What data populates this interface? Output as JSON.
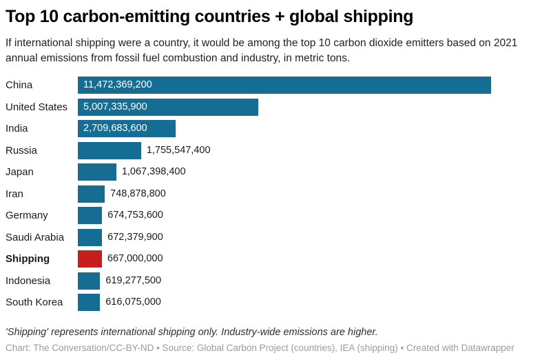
{
  "header": {
    "title": "Top 10 carbon-emitting countries + global shipping",
    "description": "If international shipping were a country, it would be among the top 10 carbon dioxide emitters based on 2021 annual emissions from fossil fuel combustion and industry, in metric tons."
  },
  "chart_data": {
    "type": "bar",
    "orientation": "horizontal",
    "title": "Top 10 carbon-emitting countries + global shipping",
    "xlabel": "",
    "ylabel": "",
    "xlim": [
      0,
      11472369200
    ],
    "grid": false,
    "legend": false,
    "value_format": "thousands-comma",
    "categories": [
      "China",
      "United States",
      "India",
      "Russia",
      "Japan",
      "Iran",
      "Germany",
      "Saudi Arabia",
      "Shipping",
      "Indonesia",
      "South Korea"
    ],
    "values": [
      11472369200,
      5007335900,
      2709683600,
      1755547400,
      1067398400,
      748878800,
      674753600,
      672379900,
      667000000,
      619277500,
      616075000
    ],
    "highlight_category": "Shipping",
    "colors": {
      "bar": "#166d93",
      "highlight": "#c71e1d",
      "value_inside": "#ffffff",
      "value_outside": "#1a1a1a"
    }
  },
  "footer": {
    "note": "'Shipping' represents international shipping only. Industry-wide emissions are higher.",
    "credit": "Chart: The Conversation/CC-BY-ND • Source: Global Carbon Project (countries), IEA (shipping) • Created with Datawrapper"
  }
}
